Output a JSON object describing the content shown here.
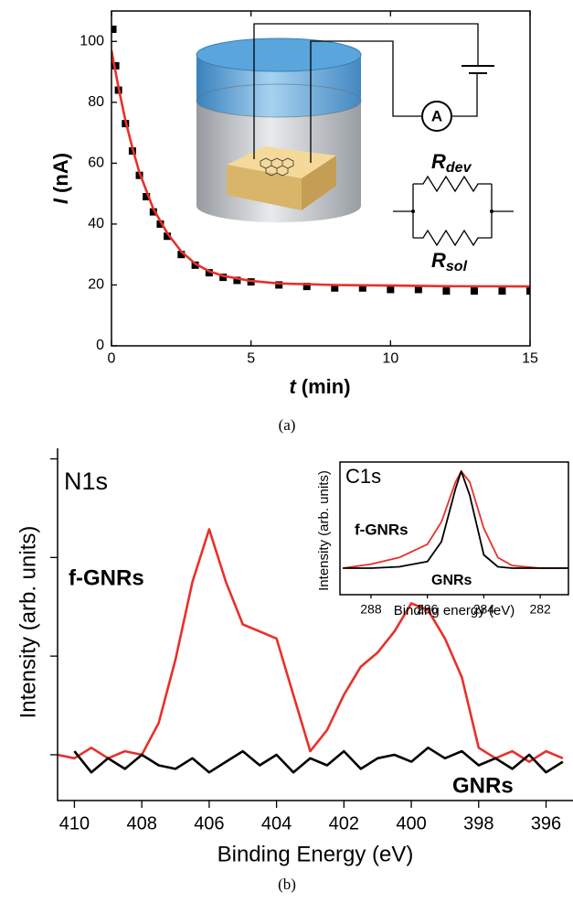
{
  "captions": [
    "(a)",
    "(b)"
  ],
  "chart_data": [
    {
      "type": "line",
      "frame": "box",
      "tick_direction": "in",
      "ytick_labels": true,
      "xlabel": {
        "symbol": "t",
        "unit": "(min)"
      },
      "ylabel": {
        "symbol": "I",
        "unit": "(nA)"
      },
      "xlim": [
        0,
        15
      ],
      "ylim": [
        0,
        110
      ],
      "xticks": [
        0,
        5,
        10,
        15
      ],
      "yticks": [
        0,
        20,
        40,
        60,
        80,
        100
      ],
      "annotations": [
        {
          "text": "R",
          "sub": "dev"
        },
        {
          "text": "R",
          "sub": "sol"
        },
        {
          "text": "A"
        }
      ],
      "series": [
        {
          "style": "markers",
          "color": "#000000",
          "x": [
            0.05,
            0.15,
            0.25,
            0.5,
            0.75,
            1,
            1.25,
            1.5,
            1.75,
            2,
            2.5,
            3,
            3.5,
            4,
            4.5,
            5,
            6,
            7,
            8,
            9,
            10,
            11,
            12,
            13,
            14,
            15
          ],
          "values": [
            104,
            92,
            84,
            73,
            64,
            56,
            49,
            44,
            40,
            36,
            30,
            26.5,
            24,
            22.5,
            21.5,
            21,
            20,
            19.5,
            19,
            19,
            18.5,
            18.5,
            18,
            18,
            18,
            18
          ]
        },
        {
          "style": "line",
          "color": "#e8302a",
          "x": [
            0,
            0.25,
            0.5,
            0.75,
            1,
            1.5,
            2,
            2.5,
            3,
            3.5,
            4,
            5,
            6,
            8,
            10,
            12,
            15
          ],
          "values": [
            97,
            85,
            74,
            65,
            57,
            45,
            37,
            31,
            27,
            24.5,
            23,
            21.3,
            20.5,
            20,
            19.8,
            19.6,
            19.5
          ]
        }
      ]
    },
    {
      "type": "line",
      "frame": "axes",
      "tick_direction": "out",
      "ytick_labels": false,
      "title": "N1s",
      "xlabel": "Binding Energy (eV)",
      "ylabel": "Intensity (arb. units)",
      "xlim": [
        410.5,
        395.2
      ],
      "ylim": [
        0,
        100
      ],
      "xticks": [
        410,
        408,
        406,
        404,
        402,
        400,
        398,
        396
      ],
      "yticks": [
        13,
        41,
        69,
        97
      ],
      "series": [
        {
          "name": "f-GNRs",
          "style": "line",
          "color": "#e8302a",
          "x": [
            410.5,
            410,
            409.5,
            409,
            408.5,
            408,
            407.5,
            407,
            406.5,
            406,
            405.5,
            405,
            404.5,
            404,
            403.5,
            403,
            402.5,
            402,
            401.5,
            401,
            400.5,
            400,
            399.5,
            399,
            398.5,
            398,
            397.5,
            397,
            396.5,
            396,
            395.5
          ],
          "values": [
            13,
            12,
            15,
            12,
            14,
            13,
            22,
            40,
            62,
            77,
            62,
            50,
            48,
            46,
            30,
            14,
            20,
            30,
            38,
            42,
            48,
            56,
            54,
            46,
            35,
            15,
            12,
            14,
            11,
            14,
            12
          ]
        },
        {
          "name": "GNRs",
          "style": "line",
          "color": "#000000",
          "x": [
            410.5,
            410,
            409.5,
            409,
            408.5,
            408,
            407.5,
            407,
            406.5,
            406,
            405.5,
            405,
            404.5,
            404,
            403.5,
            403,
            402.5,
            402,
            401.5,
            401,
            400.5,
            400,
            399.5,
            399,
            398.5,
            398,
            397.5,
            397,
            396.5,
            396,
            395.5
          ],
          "values": [
            null,
            14,
            8,
            12,
            9,
            13,
            10,
            9,
            12,
            8,
            11,
            14,
            10,
            13,
            8,
            12,
            10,
            14,
            9,
            12,
            13,
            11,
            15,
            12,
            14,
            10,
            12,
            9,
            13,
            8,
            11
          ]
        }
      ]
    },
    {
      "type": "line",
      "frame": "box",
      "tick_direction": "out",
      "ytick_labels": false,
      "title": "C1s",
      "xlabel": "Binding energy (eV)",
      "ylabel": "Intensity (arb. units)",
      "xlim": [
        289.1,
        281
      ],
      "ylim": [
        0,
        100
      ],
      "xticks": [
        288,
        286,
        284,
        282
      ],
      "yticks": [],
      "series": [
        {
          "name": "f-GNRs",
          "style": "line",
          "color": "#e8302a",
          "x": [
            289,
            288,
            287,
            286,
            285.5,
            285,
            284.8,
            284.5,
            284,
            283.5,
            283,
            282,
            281
          ],
          "values": [
            20,
            23,
            28,
            38,
            55,
            85,
            93,
            85,
            50,
            28,
            22,
            20,
            20
          ]
        },
        {
          "name": "GNRs",
          "style": "line",
          "color": "#000000",
          "x": [
            289,
            288,
            287,
            286,
            285.5,
            285,
            284.8,
            284.5,
            284,
            283.5,
            283,
            282,
            281
          ],
          "values": [
            20,
            20,
            21,
            25,
            40,
            80,
            93,
            75,
            30,
            21,
            20,
            20,
            20
          ]
        }
      ]
    }
  ]
}
